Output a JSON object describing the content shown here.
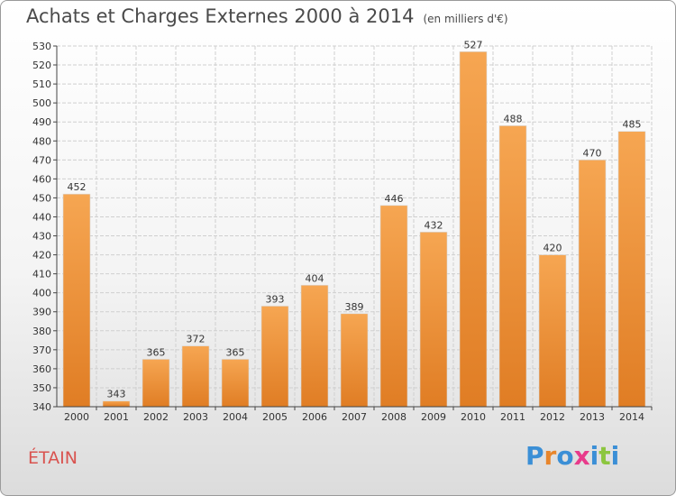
{
  "header": {
    "title": "Achats et Charges Externes 2000 à 2014",
    "subtitle": "(en milliers d'€)"
  },
  "footer": {
    "commune": "ÉTAIN",
    "logo_text": "Proxiti",
    "logo_colors": [
      "#3b8fd6",
      "#e8862c",
      "#3b8fd6",
      "#e83b8b",
      "#3b8fd6",
      "#8cc63f",
      "#3b8fd6"
    ]
  },
  "colors": {
    "bar_top": "#f6a652",
    "bar_bottom": "#e07d24",
    "grid": "#cfcfcf",
    "axis": "#444444",
    "text": "#333333"
  },
  "chart_data": {
    "type": "bar",
    "title": "Achats et Charges Externes 2000 à 2014",
    "categories": [
      "2000",
      "2001",
      "2002",
      "2003",
      "2004",
      "2005",
      "2006",
      "2007",
      "2008",
      "2009",
      "2010",
      "2011",
      "2012",
      "2013",
      "2014"
    ],
    "values": [
      452,
      343,
      365,
      372,
      365,
      393,
      404,
      389,
      446,
      432,
      527,
      488,
      420,
      470,
      485
    ],
    "ylim": [
      340,
      530
    ],
    "ytick_step": 10,
    "grid": true,
    "data_labels": true
  }
}
